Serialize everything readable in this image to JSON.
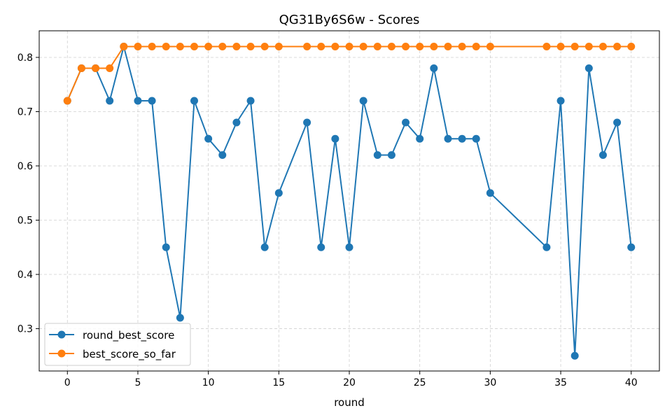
{
  "chart_data": {
    "type": "line",
    "title": "QG31By6S6w - Scores",
    "xlabel": "round",
    "ylabel": "",
    "xlim": [
      -2,
      42
    ],
    "ylim": [
      0.222,
      0.849
    ],
    "xticks": [
      0,
      5,
      10,
      15,
      20,
      25,
      30,
      35,
      40
    ],
    "yticks": [
      0.3,
      0.4,
      0.5,
      0.6,
      0.7,
      0.8
    ],
    "xtick_labels": [
      "0",
      "5",
      "10",
      "15",
      "20",
      "25",
      "30",
      "35",
      "40"
    ],
    "ytick_labels": [
      "0.3",
      "0.4",
      "0.5",
      "0.6",
      "0.7",
      "0.8"
    ],
    "grid": true,
    "legend_position": "lower-left",
    "x": [
      0,
      1,
      2,
      3,
      4,
      5,
      6,
      7,
      8,
      9,
      10,
      11,
      12,
      13,
      14,
      15,
      17,
      18,
      19,
      20,
      21,
      22,
      23,
      24,
      25,
      26,
      27,
      28,
      29,
      30,
      34,
      35,
      36,
      37,
      38,
      39,
      40
    ],
    "series": [
      {
        "name": "round_best_score",
        "color": "#1f77b4",
        "values": [
          0.72,
          0.78,
          0.78,
          0.72,
          0.82,
          0.72,
          0.72,
          0.45,
          0.32,
          0.72,
          0.65,
          0.62,
          0.68,
          0.72,
          0.45,
          0.55,
          0.68,
          0.45,
          0.65,
          0.45,
          0.72,
          0.62,
          0.62,
          0.68,
          0.65,
          0.78,
          0.65,
          0.65,
          0.65,
          0.55,
          0.45,
          0.72,
          0.25,
          0.78,
          0.62,
          0.68,
          0.45
        ]
      },
      {
        "name": "best_score_so_far",
        "color": "#ff7f0e",
        "values": [
          0.72,
          0.78,
          0.78,
          0.78,
          0.82,
          0.82,
          0.82,
          0.82,
          0.82,
          0.82,
          0.82,
          0.82,
          0.82,
          0.82,
          0.82,
          0.82,
          0.82,
          0.82,
          0.82,
          0.82,
          0.82,
          0.82,
          0.82,
          0.82,
          0.82,
          0.82,
          0.82,
          0.82,
          0.82,
          0.82,
          0.82,
          0.82,
          0.82,
          0.82,
          0.82,
          0.82,
          0.82
        ]
      }
    ]
  }
}
